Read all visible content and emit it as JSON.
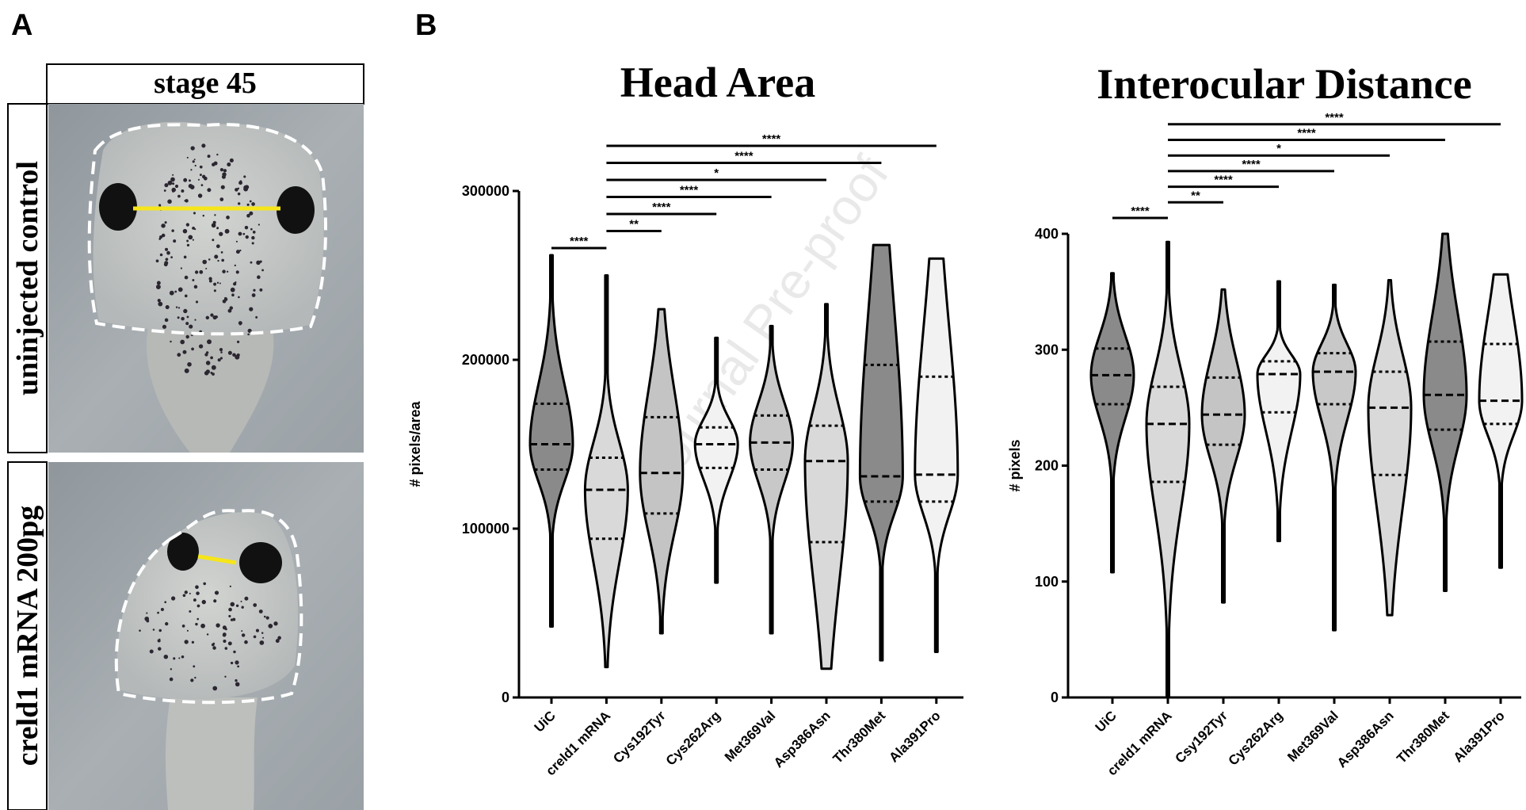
{
  "panel_labels": [
    "A",
    "B"
  ],
  "watermark": "Journal Pre-proof",
  "panel_a": {
    "header": "stage 45",
    "rows": [
      "uninjected control",
      "creld1 mRNA 200pg"
    ]
  },
  "chart_data": [
    {
      "type": "violin",
      "title": "Head Area",
      "y_label": "# pixels/area",
      "categories": [
        "UiC",
        "creld1 mRNA",
        "Cys192Tyr",
        "Cys262Arg",
        "Met369Val",
        "Asp386Asn",
        "Thr380Met",
        "Ala391Pro"
      ],
      "colors": [
        "#8a8a8a",
        "#d9d9d9",
        "#c4c4c4",
        "#f2f2f2",
        "#c8c8c8",
        "#d9d9d9",
        "#8a8a8a",
        "#f2f2f2"
      ],
      "min": [
        42000,
        18000,
        38000,
        68000,
        38000,
        17000,
        22000,
        27000
      ],
      "q1": [
        135000,
        94000,
        109000,
        136000,
        135000,
        92000,
        116000,
        116000
      ],
      "median": [
        150000,
        123000,
        133000,
        150000,
        151000,
        140000,
        131000,
        132000
      ],
      "q3": [
        174000,
        142000,
        166000,
        160000,
        167000,
        161000,
        197000,
        190000
      ],
      "max": [
        262000,
        250000,
        230000,
        213000,
        220000,
        233000,
        268000,
        260000
      ],
      "ylim": [
        0,
        300000
      ],
      "yticks": [
        0,
        100000,
        200000,
        300000
      ],
      "comparisons": [
        {
          "groups": [
            "UiC",
            "creld1 mRNA"
          ],
          "label": "****"
        },
        {
          "groups": [
            "creld1 mRNA",
            "Cys192Tyr"
          ],
          "label": "**"
        },
        {
          "groups": [
            "creld1 mRNA",
            "Cys262Arg"
          ],
          "label": "****"
        },
        {
          "groups": [
            "creld1 mRNA",
            "Met369Val"
          ],
          "label": "****"
        },
        {
          "groups": [
            "creld1 mRNA",
            "Asp386Asn"
          ],
          "label": "*"
        },
        {
          "groups": [
            "creld1 mRNA",
            "Thr380Met"
          ],
          "label": "****"
        },
        {
          "groups": [
            "creld1 mRNA",
            "Ala391Pro"
          ],
          "label": "****"
        }
      ]
    },
    {
      "type": "violin",
      "title": "Interocular Distance",
      "y_label": "# pixels",
      "categories": [
        "UiC",
        "creld1 mRNA",
        "Csy192Tyr",
        "Cys262Arg",
        "Met369Val",
        "Asp386Asn",
        "Thr380Met",
        "Ala391Pro"
      ],
      "colors": [
        "#8a8a8a",
        "#d9d9d9",
        "#c4c4c4",
        "#f2f2f2",
        "#c8c8c8",
        "#d9d9d9",
        "#8a8a8a",
        "#f2f2f2"
      ],
      "min": [
        108,
        0,
        82,
        135,
        58,
        71,
        92,
        112
      ],
      "q1": [
        253,
        186,
        218,
        246,
        253,
        192,
        231,
        236
      ],
      "median": [
        278,
        236,
        244,
        279,
        281,
        250,
        261,
        256
      ],
      "q3": [
        301,
        268,
        276,
        290,
        297,
        281,
        307,
        305
      ],
      "max": [
        366,
        393,
        352,
        359,
        356,
        360,
        400,
        365
      ],
      "ylim": [
        0,
        400
      ],
      "yticks": [
        0,
        100,
        200,
        300,
        400
      ],
      "comparisons": [
        {
          "groups": [
            "UiC",
            "creld1 mRNA"
          ],
          "label": "****"
        },
        {
          "groups": [
            "creld1 mRNA",
            "Csy192Tyr"
          ],
          "label": "**"
        },
        {
          "groups": [
            "creld1 mRNA",
            "Cys262Arg"
          ],
          "label": "****"
        },
        {
          "groups": [
            "creld1 mRNA",
            "Met369Val"
          ],
          "label": "****"
        },
        {
          "groups": [
            "creld1 mRNA",
            "Asp386Asn"
          ],
          "label": "*"
        },
        {
          "groups": [
            "creld1 mRNA",
            "Thr380Met"
          ],
          "label": "****"
        },
        {
          "groups": [
            "creld1 mRNA",
            "Ala391Pro"
          ],
          "label": "****"
        }
      ]
    }
  ]
}
